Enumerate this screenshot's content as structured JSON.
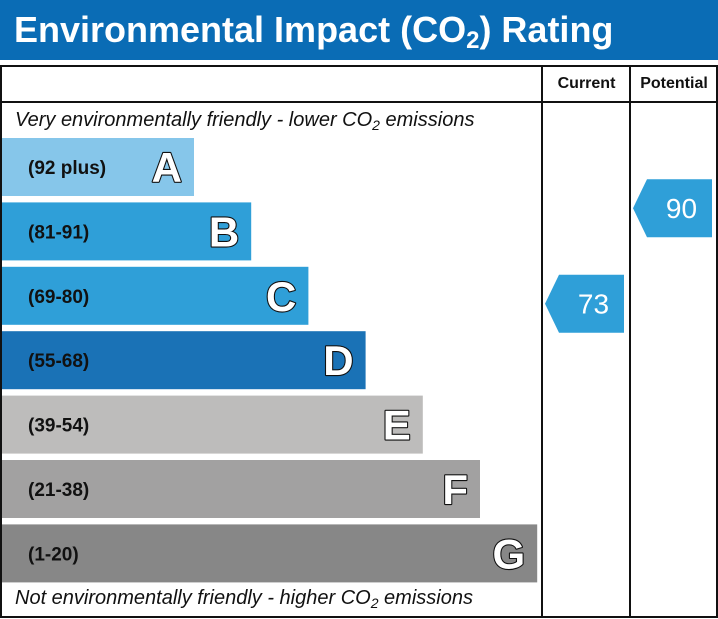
{
  "title": {
    "prefix": "Environmental Impact (CO",
    "subscript": "2",
    "suffix": ") Rating"
  },
  "columns": {
    "current": "Current",
    "potential": "Potential"
  },
  "captions": {
    "top_prefix": "Very environmentally friendly - lower CO",
    "top_subscript": "2",
    "top_suffix": " emissions",
    "bottom_prefix": "Not environmentally friendly - higher CO",
    "bottom_subscript": "2",
    "bottom_suffix": " emissions"
  },
  "chart_data": {
    "type": "bar",
    "categories": [
      "A",
      "B",
      "C",
      "D",
      "E",
      "F",
      "G"
    ],
    "bands": [
      {
        "letter": "A",
        "range": "(92 plus)",
        "min": 92,
        "max": 100,
        "color": "#86c6ea"
      },
      {
        "letter": "B",
        "range": "(81-91)",
        "min": 81,
        "max": 91,
        "color": "#2f9fd8"
      },
      {
        "letter": "C",
        "range": "(69-80)",
        "min": 69,
        "max": 80,
        "color": "#2f9fd8"
      },
      {
        "letter": "D",
        "range": "(55-68)",
        "min": 55,
        "max": 68,
        "color": "#1a72b6"
      },
      {
        "letter": "E",
        "range": "(39-54)",
        "min": 39,
        "max": 54,
        "color": "#bdbcbb"
      },
      {
        "letter": "F",
        "range": "(21-38)",
        "min": 21,
        "max": 38,
        "color": "#a2a1a1"
      },
      {
        "letter": "G",
        "range": "(1-20)",
        "min": 1,
        "max": 20,
        "color": "#878787"
      }
    ],
    "current": {
      "value": 73,
      "band": "C",
      "color": "#2f9fd8"
    },
    "potential": {
      "value": 90,
      "band": "B",
      "color": "#2f9fd8"
    }
  }
}
